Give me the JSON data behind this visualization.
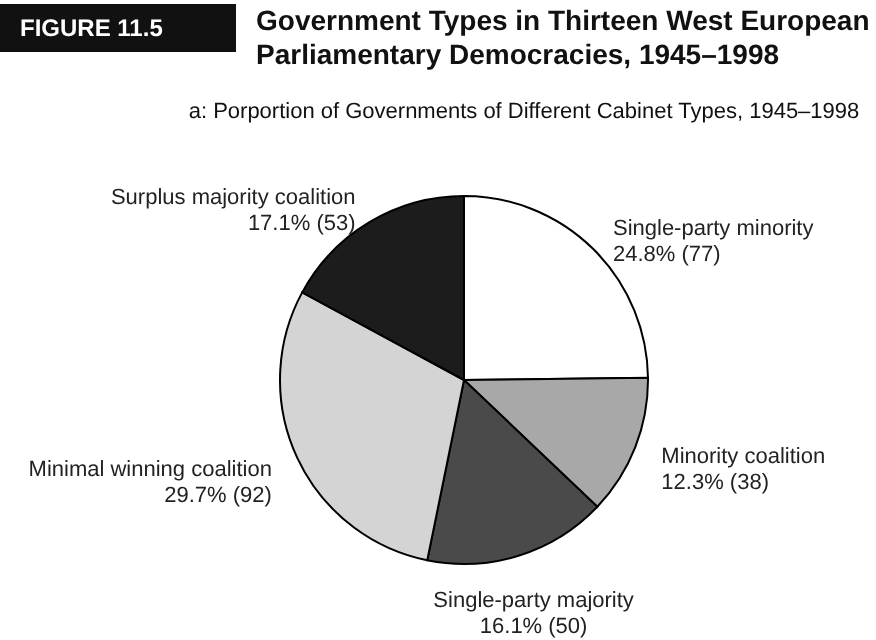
{
  "chart_data": {
    "type": "pie",
    "title": "Government Types in Thirteen West European Parliamentary Democracies, 1945–1998",
    "subtitle": "a: Porportion of Governments of Different Cabinet Types, 1945–1998",
    "annotations": [
      "FIGURE 11.5"
    ],
    "categories": [
      "Single-party minority",
      "Minority coalition",
      "Single-party majority",
      "Minimal winning coalition",
      "Surplus majority coalition"
    ],
    "values": [
      24.8,
      12.3,
      16.1,
      29.7,
      17.1
    ],
    "value_labels": [
      "24.8% (77)",
      "12.3% (38)",
      "16.1% (50)",
      "29.7% (92)",
      "17.1% (53)"
    ],
    "colors": [
      "#ffffff",
      "#a8a8a8",
      "#4a4a4a",
      "#d4d4d4",
      "#1c1c1c"
    ]
  }
}
